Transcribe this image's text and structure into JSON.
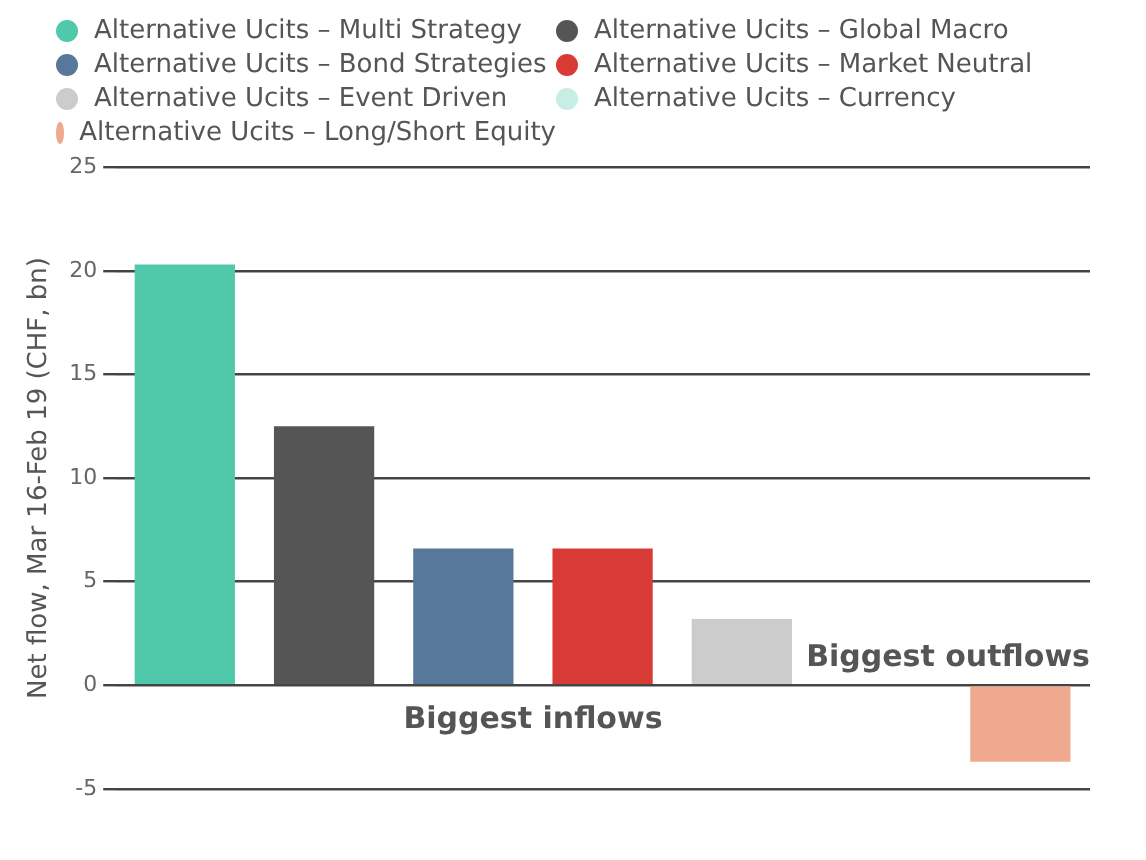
{
  "chart_data": {
    "type": "bar",
    "ylabel": "Net flow, Mar 16-Feb 19 (CHF, bn)",
    "categories": [
      null,
      null,
      null,
      null,
      null,
      null,
      null
    ],
    "series": [
      {
        "name": "Alternative Ucits – Multi Strategy",
        "color": "#4fc9a9",
        "values": [
          20.3,
          null,
          null,
          null,
          null,
          null,
          null
        ]
      },
      {
        "name": "Alternative Ucits – Global Macro",
        "color": "#555555",
        "values": [
          null,
          12.5,
          null,
          null,
          null,
          null,
          null
        ]
      },
      {
        "name": "Alternative Ucits – Bond Strategies",
        "color": "#57789a",
        "values": [
          null,
          null,
          6.6,
          null,
          null,
          null,
          null
        ]
      },
      {
        "name": "Alternative Ucits – Market Neutral",
        "color": "#d83a35",
        "values": [
          null,
          null,
          null,
          6.6,
          null,
          null,
          null
        ]
      },
      {
        "name": "Alternative Ucits – Event Driven",
        "color": "#cccccc",
        "values": [
          null,
          null,
          null,
          null,
          3.2,
          null,
          null
        ]
      },
      {
        "name": "Alternative Ucits – Currency",
        "color": "#c8ede3",
        "values": [
          null,
          null,
          null,
          null,
          null,
          0,
          null
        ]
      },
      {
        "name": "Alternative Ucits – Long/Short Equity",
        "color": "#efa98f",
        "values": [
          null,
          null,
          null,
          null,
          null,
          null,
          -3.7
        ]
      }
    ],
    "ylim": [
      -5,
      25
    ],
    "yticks": [
      -5,
      0,
      5,
      10,
      15,
      20,
      25
    ],
    "grid": "y",
    "legend": "top left",
    "tick_labels": "y",
    "annotations": [
      "Biggest inflows",
      "Biggest outflows"
    ]
  }
}
